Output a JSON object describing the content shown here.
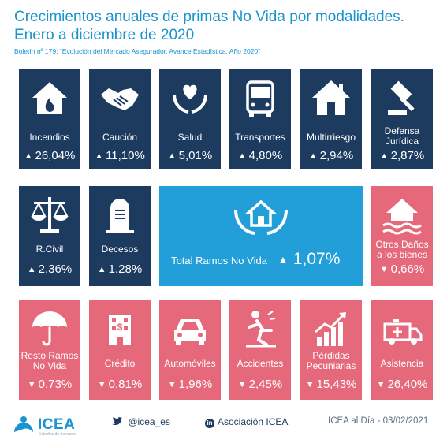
{
  "header": {
    "title_line1": "Crecimientos anuales de primas No Vida por modalidades.",
    "title_line2": "Enero a diciembre de 2020",
    "subtitle": "Boletín nº 179: “Evolución del Mercado Asegurador. Avance Estadística. Año 2020”"
  },
  "tiles": {
    "incendios": {
      "label": "Incendios",
      "value": "26,04%",
      "direction": "up"
    },
    "caucion": {
      "label": "Caución",
      "value": "11,10%",
      "direction": "up"
    },
    "salud": {
      "label": "Salud",
      "value": "5,01%",
      "direction": "up"
    },
    "transportes": {
      "label": "Transportes",
      "value": "4,80%",
      "direction": "up"
    },
    "multirriesgo": {
      "label": "Multirriesgo",
      "value": "2,94%",
      "direction": "up"
    },
    "defensa": {
      "label1": "Defensa",
      "label2": "Jurídica",
      "value": "2,87%",
      "direction": "up"
    },
    "rcivil": {
      "label": "R.Civil",
      "value": "2,36%",
      "direction": "up"
    },
    "decesos": {
      "label": "Decesos",
      "value": "1,28%",
      "direction": "up"
    },
    "total": {
      "label": "Total Ramos No Vida",
      "value": "1,07%",
      "direction": "up"
    },
    "otros": {
      "label1": "Otros Daños",
      "label2": "a los bienes",
      "value": "0,66%",
      "direction": "down"
    },
    "resto": {
      "label1": "Resto Ramos",
      "label2": "No Vida",
      "value": "0,73%",
      "direction": "down"
    },
    "credito": {
      "label": "Crédito",
      "value": "0,81%",
      "direction": "down"
    },
    "automoviles": {
      "label": "Automóviles",
      "value": "1,96%",
      "direction": "down"
    },
    "accidentes": {
      "label": "Accidentes",
      "value": "2,45%",
      "direction": "down"
    },
    "perdidas": {
      "label1": "Pérdidas",
      "label2": "Pecuniarias",
      "value": "15,43%",
      "direction": "down"
    },
    "asistencia": {
      "label": "Asistencia",
      "value": "26,40%",
      "direction": "down"
    }
  },
  "arrows": {
    "up": "▲",
    "down": "▼"
  },
  "footer": {
    "logo_text": "ICEA",
    "logo_tagline": "Estudios de mercado",
    "twitter": "@icea_es",
    "linkedin_badge": "in",
    "linkedin": "Asociación ICEA",
    "date": "ICEA al Día - 03/02/2021"
  },
  "colors": {
    "positive_tile": "#1d3a5f",
    "negative_tile": "#e5697b",
    "total_tile": "#229ed9",
    "accent": "#1a93d1"
  }
}
